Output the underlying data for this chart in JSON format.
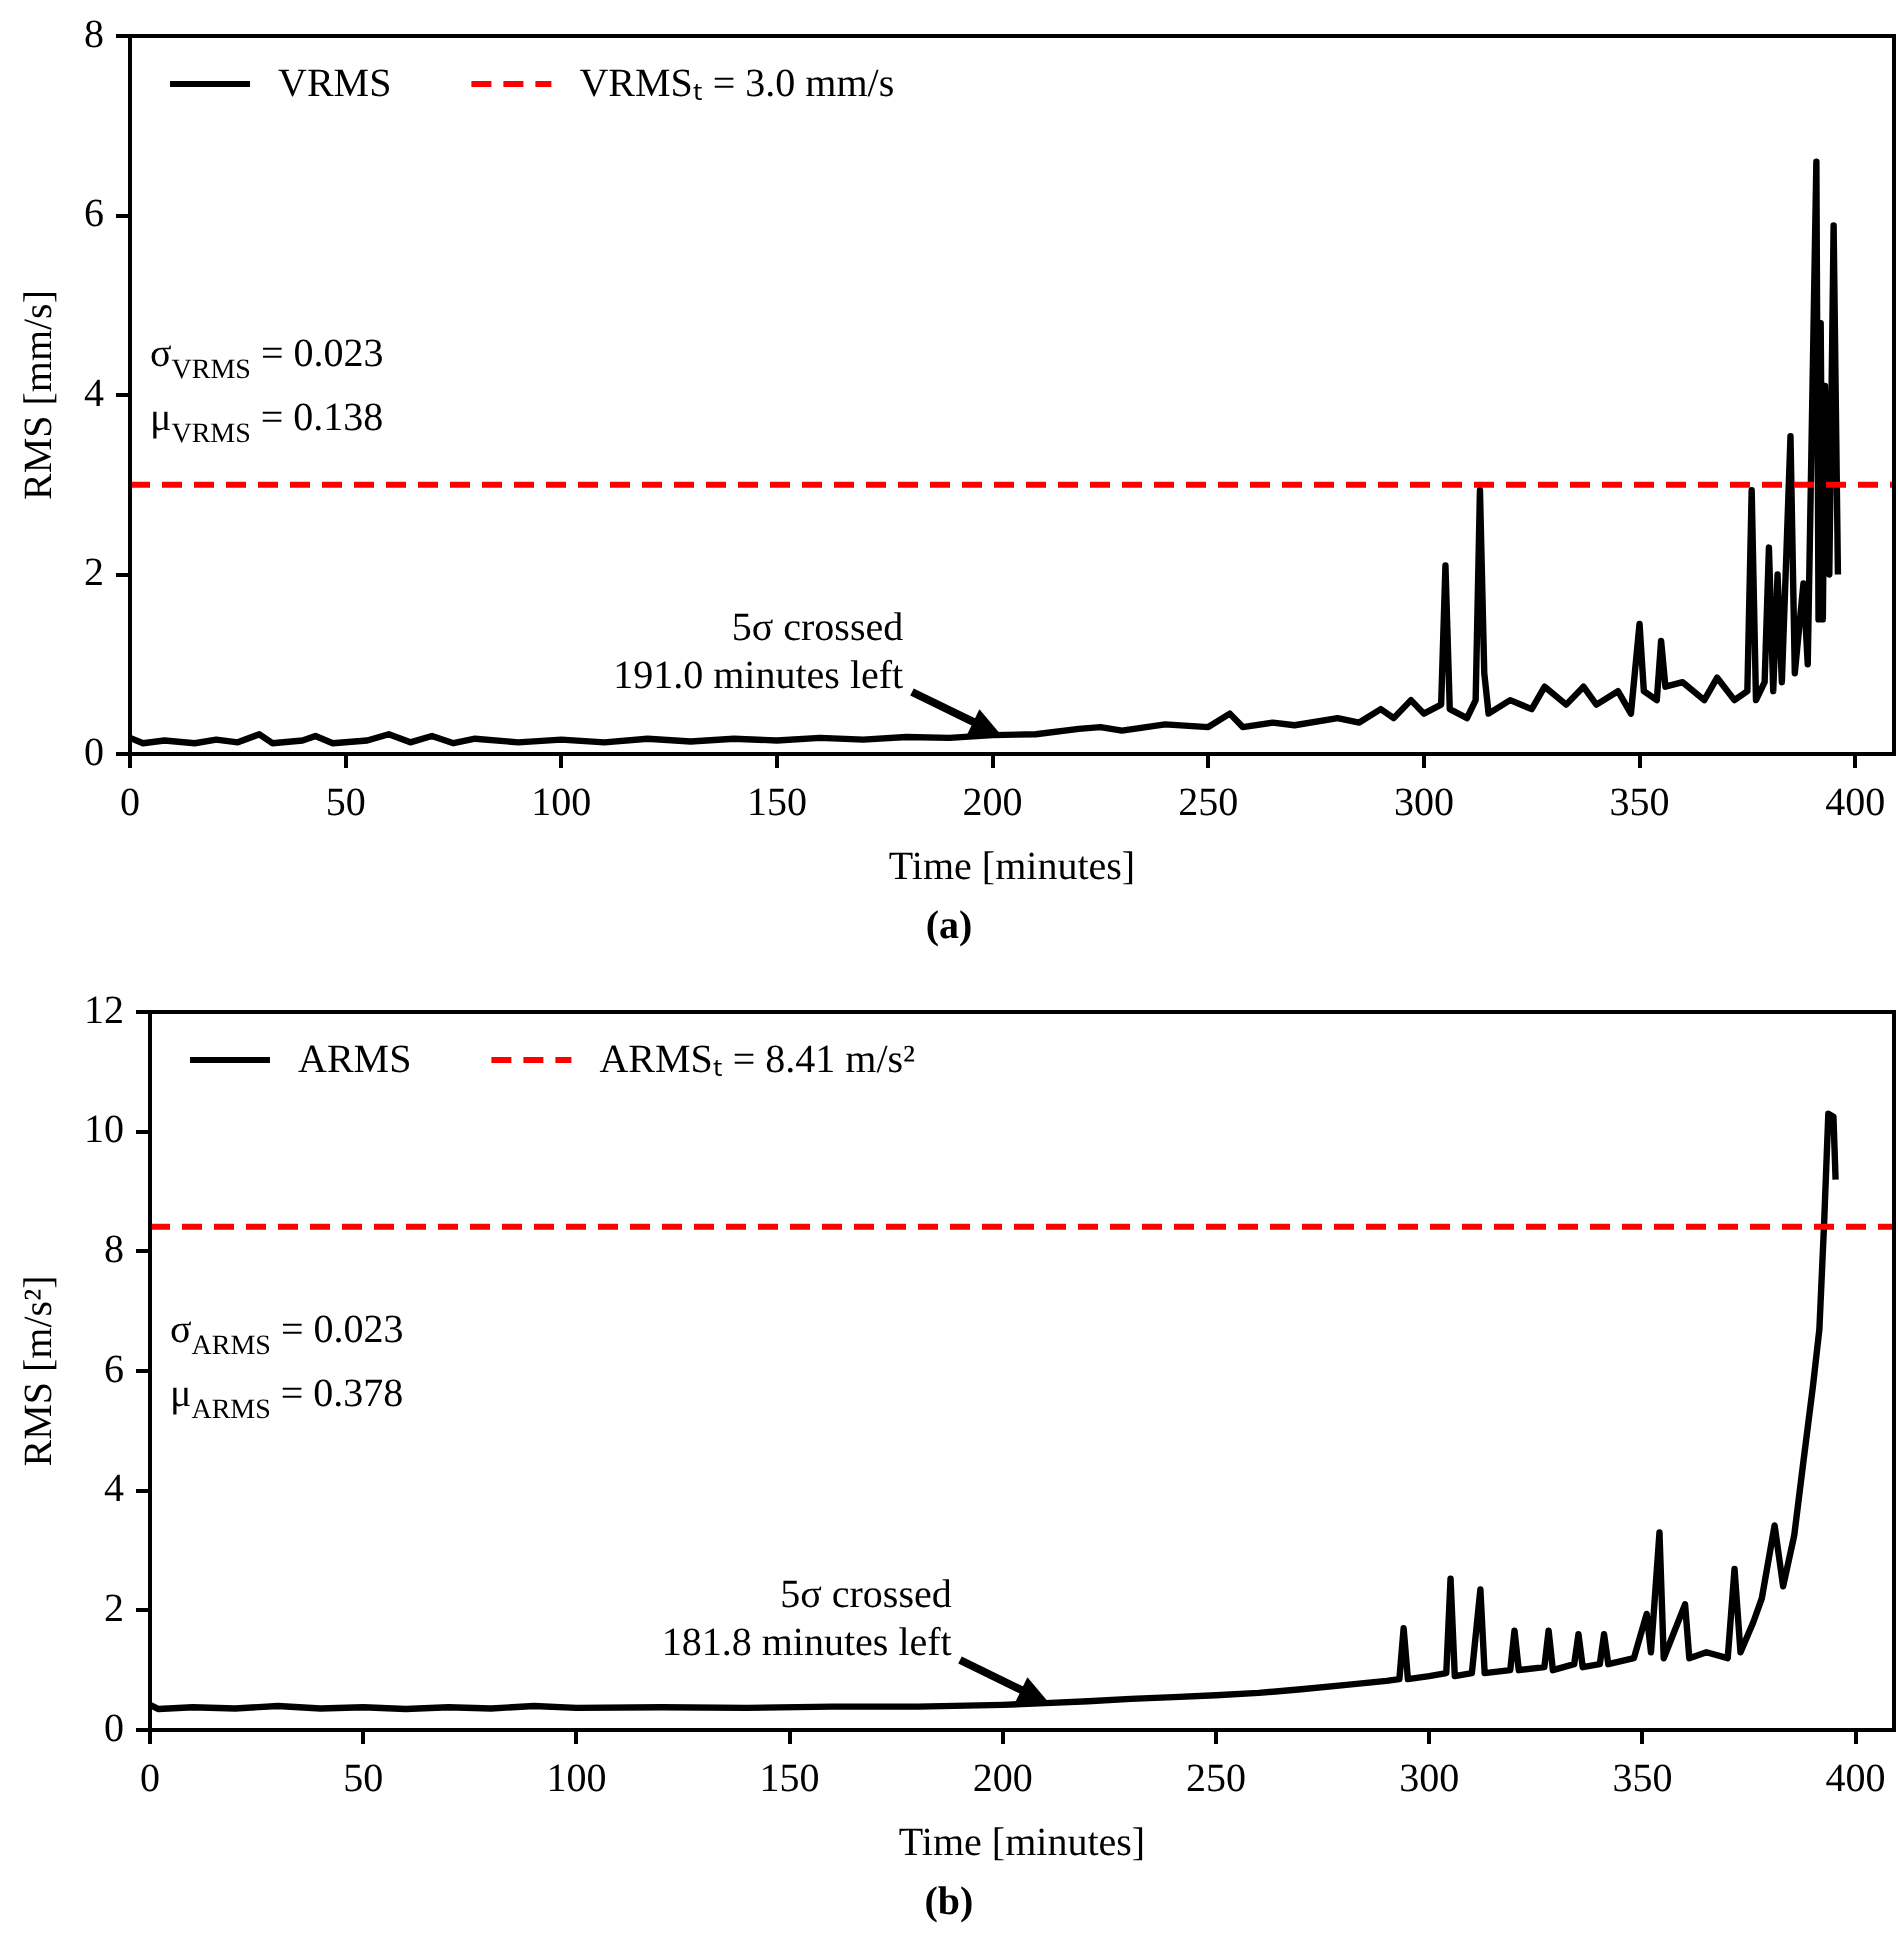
{
  "chart_data": [
    {
      "type": "line",
      "title": "(a)",
      "xlabel": "Time [minutes]",
      "ylabel": "RMS [mm/s]",
      "xlim": [
        0,
        409
      ],
      "xticks": [
        0,
        50,
        100,
        150,
        200,
        250,
        300,
        350,
        400
      ],
      "ylim": [
        0,
        8
      ],
      "yticks": [
        0,
        2,
        4,
        6,
        8
      ],
      "legend": "top left",
      "x": [
        0,
        3,
        8,
        15,
        20,
        25,
        30,
        33,
        40,
        43,
        47,
        55,
        60,
        65,
        70,
        75,
        80,
        90,
        100,
        110,
        120,
        130,
        140,
        150,
        160,
        170,
        180,
        190,
        200,
        210,
        220,
        225,
        230,
        240,
        250,
        255,
        258,
        265,
        270,
        280,
        285,
        290,
        293,
        297,
        300,
        304,
        305,
        306,
        310,
        312,
        313,
        314,
        315,
        320,
        325,
        328,
        333,
        337,
        340,
        345,
        348,
        350,
        351,
        354,
        355,
        356,
        360,
        365,
        368,
        372,
        375,
        376,
        377,
        379,
        380,
        381,
        382,
        383,
        385,
        386,
        388,
        389,
        391,
        391.5,
        392,
        392.5,
        393,
        394,
        395,
        396
      ],
      "series": [
        {
          "name": "VRMS",
          "color": "#000000",
          "values": [
            0.18,
            0.12,
            0.15,
            0.12,
            0.16,
            0.13,
            0.22,
            0.12,
            0.15,
            0.2,
            0.12,
            0.15,
            0.22,
            0.13,
            0.2,
            0.12,
            0.17,
            0.13,
            0.16,
            0.13,
            0.17,
            0.14,
            0.17,
            0.15,
            0.18,
            0.16,
            0.19,
            0.18,
            0.21,
            0.22,
            0.28,
            0.3,
            0.26,
            0.33,
            0.3,
            0.45,
            0.3,
            0.35,
            0.32,
            0.4,
            0.35,
            0.5,
            0.4,
            0.6,
            0.45,
            0.55,
            2.1,
            0.5,
            0.4,
            0.6,
            2.94,
            0.9,
            0.45,
            0.6,
            0.5,
            0.75,
            0.55,
            0.75,
            0.55,
            0.7,
            0.45,
            1.45,
            0.7,
            0.6,
            1.26,
            0.75,
            0.8,
            0.6,
            0.85,
            0.6,
            0.7,
            2.94,
            0.6,
            0.8,
            2.3,
            0.7,
            2.0,
            0.8,
            3.54,
            0.9,
            1.9,
            1.0,
            6.6,
            1.5,
            4.8,
            1.5,
            4.1,
            2.0,
            5.89,
            2.0
          ]
        }
      ],
      "ref_lines": [
        {
          "axis": "y",
          "value": 3.0,
          "label": "VRMSₜ = 3.0 mm/s",
          "color": "#ff0000",
          "line_style": "dashed"
        }
      ],
      "annotations": [
        "σ$_{VRMS}$ = 0.023",
        "μ$_{VRMS}$ = 0.138",
        {
          "text": "5σ crossed\n191.0 minutes left",
          "x": 202,
          "y": 0.2
        }
      ]
    },
    {
      "type": "line",
      "title": "(b)",
      "xlabel": "Time [minutes]",
      "ylabel": "RMS [m/s²]",
      "xlim": [
        0,
        409
      ],
      "xticks": [
        0,
        50,
        100,
        150,
        200,
        250,
        300,
        350,
        400
      ],
      "ylim": [
        0,
        12
      ],
      "yticks": [
        0,
        2,
        4,
        6,
        8,
        10,
        12
      ],
      "legend": "top left",
      "x": [
        0,
        2,
        10,
        20,
        30,
        40,
        50,
        60,
        70,
        80,
        90,
        100,
        120,
        140,
        160,
        180,
        200,
        210,
        220,
        230,
        240,
        250,
        260,
        270,
        280,
        290,
        293,
        294,
        295,
        300,
        304,
        305,
        306,
        310,
        312,
        313,
        319,
        320,
        321,
        327,
        328,
        329,
        334,
        335,
        336,
        340,
        341,
        342,
        348,
        351,
        352,
        354,
        355,
        360,
        361,
        365,
        370,
        371.6,
        373,
        376,
        378,
        381,
        383,
        385.6,
        387.6,
        390,
        391.5,
        392.6,
        393.6,
        394.8,
        395.3
      ],
      "series": [
        {
          "name": "ARMS",
          "color": "#000000",
          "values": [
            0.42,
            0.35,
            0.38,
            0.36,
            0.4,
            0.36,
            0.38,
            0.35,
            0.38,
            0.36,
            0.4,
            0.37,
            0.38,
            0.37,
            0.39,
            0.39,
            0.42,
            0.45,
            0.48,
            0.52,
            0.55,
            0.58,
            0.62,
            0.68,
            0.75,
            0.82,
            0.85,
            1.7,
            0.85,
            0.9,
            0.95,
            2.53,
            0.9,
            0.95,
            2.35,
            0.95,
            1.0,
            1.66,
            1.0,
            1.05,
            1.66,
            1.0,
            1.1,
            1.6,
            1.05,
            1.1,
            1.6,
            1.1,
            1.2,
            1.94,
            1.3,
            3.3,
            1.2,
            2.1,
            1.2,
            1.3,
            1.2,
            2.69,
            1.3,
            1.8,
            2.2,
            3.42,
            2.4,
            3.25,
            4.4,
            5.75,
            6.7,
            8.45,
            10.3,
            10.25,
            9.2
          ]
        }
      ],
      "ref_lines": [
        {
          "axis": "y",
          "value": 8.41,
          "label": "ARMSₜ = 8.41 m/s²",
          "color": "#ff0000",
          "line_style": "dashed"
        }
      ],
      "annotations": [
        "σ$_{ARMS}$ = 0.023",
        "μ$_{ARMS}$ = 0.378",
        {
          "text": "5σ crossed\n181.8 minutes left",
          "x": 211,
          "y": 0.45
        }
      ]
    }
  ]
}
